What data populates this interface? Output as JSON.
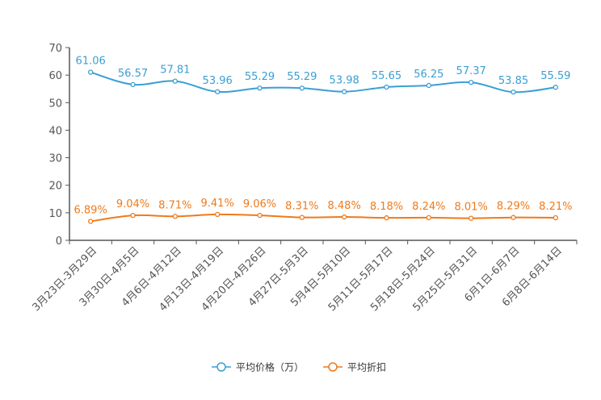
{
  "colors": {
    "price": "#3a9fd4",
    "discount": "#ef7a1a",
    "axis": "#555555"
  },
  "chart_data": {
    "type": "line",
    "title": "",
    "xlabel": "",
    "ylabel": "",
    "ylim": [
      0,
      70
    ],
    "yticks": [
      0,
      10,
      20,
      30,
      40,
      50,
      60,
      70
    ],
    "smooth": true,
    "legend_position": "bottom-center",
    "categories": [
      "3月23日-3月29日",
      "3月30日-4月5日",
      "4月6日-4月12日",
      "4月13日-4月19日",
      "4月20日-4月26日",
      "4月27日-5月3日",
      "5月4日-5月10日",
      "5月11日-5月17日",
      "5月18日-5月24日",
      "5月25日-5月31日",
      "6月1日-6月7日",
      "6月8日-6月14日"
    ],
    "series": [
      {
        "name": "平均价格（万）",
        "color": "#3a9fd4",
        "values": [
          61.06,
          56.57,
          57.81,
          53.96,
          55.29,
          55.29,
          53.98,
          55.65,
          56.25,
          57.37,
          53.85,
          55.59
        ],
        "labels": [
          "61.06",
          "56.57",
          "57.81",
          "53.96",
          "55.29",
          "55.29",
          "53.98",
          "55.65",
          "56.25",
          "57.37",
          "53.85",
          "55.59"
        ]
      },
      {
        "name": "平均折扣",
        "color": "#ef7a1a",
        "values": [
          6.89,
          9.04,
          8.71,
          9.41,
          9.06,
          8.31,
          8.48,
          8.18,
          8.24,
          8.01,
          8.29,
          8.21
        ],
        "labels": [
          "6.89%",
          "9.04%",
          "8.71%",
          "9.41%",
          "9.06%",
          "8.31%",
          "8.48%",
          "8.18%",
          "8.24%",
          "8.01%",
          "8.29%",
          "8.21%"
        ]
      }
    ]
  }
}
